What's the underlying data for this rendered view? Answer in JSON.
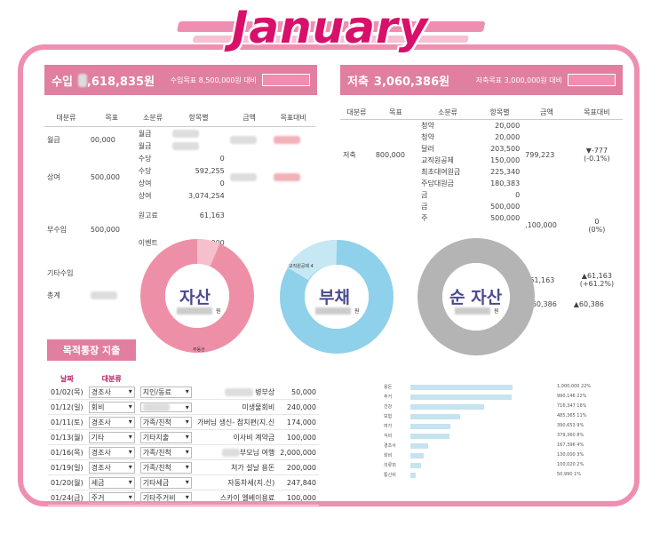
{
  "title": "January",
  "income": {
    "label_prefix": "수입",
    "amount_visible": ",618,835원",
    "target_text": "수입목표 8,500,000원 대비",
    "headers": [
      "대분류",
      "목표",
      "소분류",
      "항목별",
      "금액",
      "목표대비"
    ],
    "rows": [
      {
        "cat": "월급",
        "goal": "00,000",
        "subs": [
          "월급",
          "월급"
        ],
        "vals": [
          "",
          ""
        ]
      },
      {
        "cat": "상여",
        "goal": "500,000",
        "subs": [
          "수당",
          "수당",
          "상여",
          "상여"
        ],
        "vals": [
          "0",
          "592,255",
          "0",
          "3,074,254"
        ]
      },
      {
        "cat": "부수입",
        "goal": "500,000",
        "subs": [
          "원고료",
          "이벤트"
        ],
        "vals": [
          "61,163",
          "120,000"
        ]
      },
      {
        "cat": "기타수입",
        "goal": "",
        "subs": [],
        "vals": []
      },
      {
        "cat": "총계",
        "goal": "",
        "subs": [],
        "vals": []
      }
    ]
  },
  "savings": {
    "label": "저축",
    "amount": "3,060,386원",
    "target_text": "저축목표 3,000,000원 대비",
    "headers": [
      "대분류",
      "목표",
      "소분류",
      "항목별",
      "금액",
      "목표대비"
    ],
    "main": {
      "cat": "저축",
      "goal": "800,000",
      "total": "799,223",
      "delta": "▼-777",
      "delta_pct": "(-0.1%)"
    },
    "subs": [
      {
        "name": "청약",
        "value": "20,000"
      },
      {
        "name": "청약",
        "value": "20,000"
      },
      {
        "name": "달러",
        "value": "203,500"
      },
      {
        "name": "교직원공제",
        "value": "150,000"
      },
      {
        "name": "최초대여원금",
        "value": "225,340"
      },
      {
        "name": "주담대원금",
        "value": "180,383"
      }
    ],
    "subs2": [
      {
        "name": "금",
        "value": "0"
      },
      {
        "name": "금",
        "value": "500,000"
      },
      {
        "name": "주",
        "value": "500,000"
      }
    ],
    "second_total": ",100,000",
    "second_delta": "0",
    "second_pct": "(0%)",
    "third_total": "161,163",
    "third_delta": "▲61,163",
    "third_pct": "(+61.2%)",
    "grand_total": ",060,386",
    "grand_delta": "▲60,386"
  },
  "donuts": [
    {
      "label": "자산",
      "unit": "원",
      "small": "부동산",
      "color": "#ee8fa8"
    },
    {
      "label": "부채",
      "unit": "원",
      "small": "교직원공제 4",
      "color": "#8fd0ea"
    },
    {
      "label": "순 자산",
      "unit": "원",
      "small": "",
      "color": "#b4b4b4"
    }
  ],
  "expense": {
    "header": "목적통장 지출",
    "col_date": "날짜",
    "col_cat": "대분류",
    "rows": [
      {
        "date": "01/02(목)",
        "cat": "경조사",
        "sub": "지인/동료",
        "desc": "병부상",
        "amount": "50,000"
      },
      {
        "date": "01/12(일)",
        "cat": "회비",
        "sub": "",
        "desc": "미생물회비",
        "amount": "240,000"
      },
      {
        "date": "01/11(토)",
        "cat": "경조사",
        "sub": "가족/친척",
        "desc": "가버님 생신- 참치편(지.신",
        "amount": "174,000"
      },
      {
        "date": "01/13(월)",
        "cat": "기타",
        "sub": "기타지출",
        "desc": "이사비 계약금",
        "amount": "100,000"
      },
      {
        "date": "01/16(목)",
        "cat": "경조사",
        "sub": "가족/친척",
        "desc": "부모님 여행",
        "amount": "2,000,000"
      },
      {
        "date": "01/19(일)",
        "cat": "경조사",
        "sub": "가족/친척",
        "desc": "처가 설날 용돈",
        "amount": "200,000"
      },
      {
        "date": "01/20(월)",
        "cat": "세금",
        "sub": "기타세금",
        "desc": "자동차세(지.신)",
        "amount": "247,840"
      },
      {
        "date": "01/24(금)",
        "cat": "주거",
        "sub": "기타주거비",
        "desc": "스카이 엘베이용료",
        "amount": "100,000"
      }
    ]
  },
  "expense_bars": [
    {
      "label": "용돈",
      "value": "1,000,000",
      "pct": "22%",
      "ratio": 1.0
    },
    {
      "label": "주거",
      "value": "990,146",
      "pct": "22%",
      "ratio": 0.99
    },
    {
      "label": "건강",
      "value": "716,347",
      "pct": "16%",
      "ratio": 0.72
    },
    {
      "label": "보험",
      "value": "485,365",
      "pct": "11%",
      "ratio": 0.49
    },
    {
      "label": "여가",
      "value": "390,653",
      "pct": "9%",
      "ratio": 0.39
    },
    {
      "label": "식비",
      "value": "379,360",
      "pct": "8%",
      "ratio": 0.38
    },
    {
      "label": "경조사",
      "value": "167,396",
      "pct": "4%",
      "ratio": 0.17
    },
    {
      "label": "회비",
      "value": "130,000",
      "pct": "3%",
      "ratio": 0.13
    },
    {
      "label": "의류피",
      "value": "100,020",
      "pct": "2%",
      "ratio": 0.1
    },
    {
      "label": "통신비",
      "value": "50,990",
      "pct": "1%",
      "ratio": 0.05
    }
  ]
}
